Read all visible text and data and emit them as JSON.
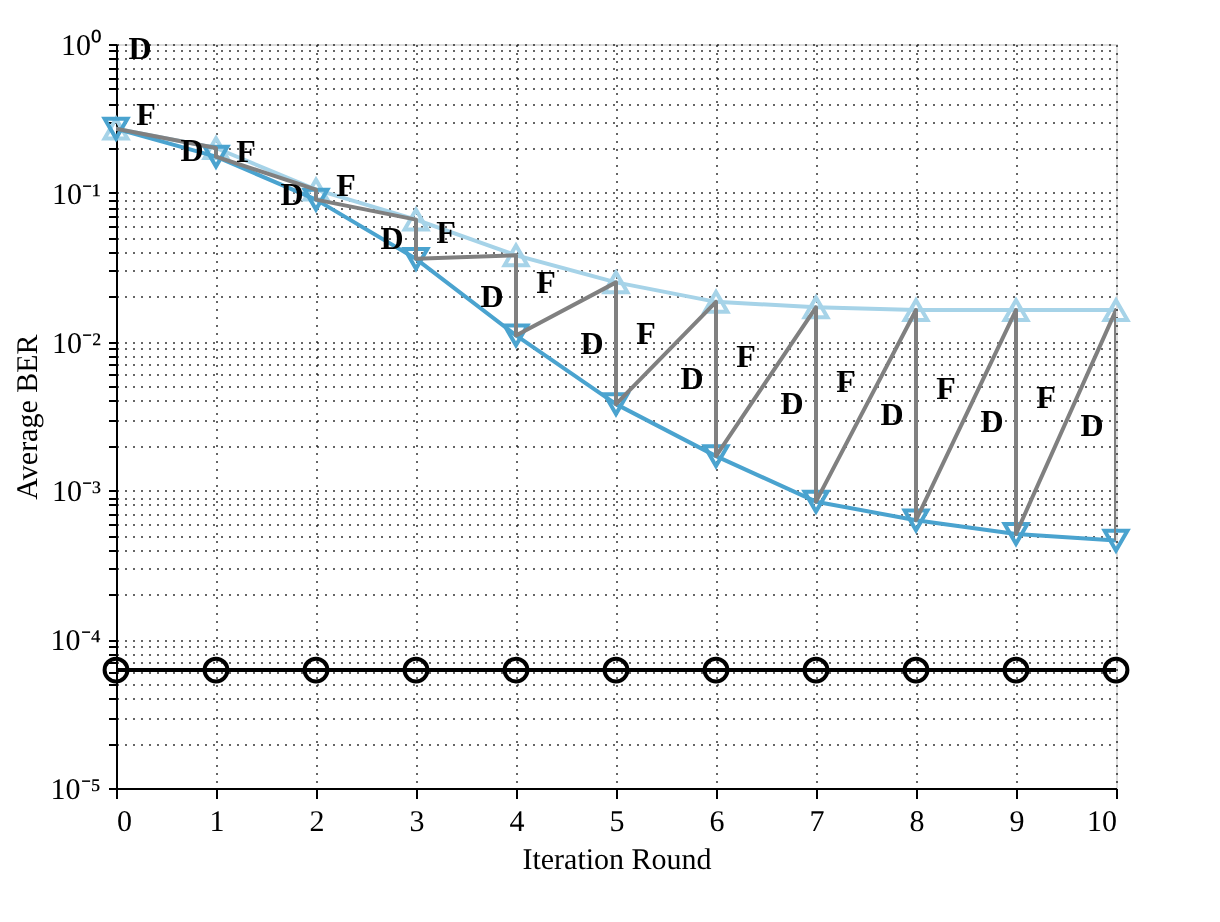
{
  "chart_data": {
    "type": "line",
    "xlabel": "Iteration Round",
    "ylabel": "Average BER",
    "log": "y",
    "grid": true,
    "line_style": "solid",
    "x": [
      0,
      1,
      2,
      3,
      4,
      5,
      6,
      7,
      8,
      9,
      10
    ],
    "xlim": [
      0,
      10
    ],
    "xticks": [
      0,
      1,
      2,
      3,
      4,
      5,
      6,
      7,
      8,
      9,
      10
    ],
    "ylim": [
      1e-05,
      1
    ],
    "yticks": [
      {
        "value": 1e-05,
        "label": "10⁻⁵"
      },
      {
        "value": 2e-05,
        "label": null
      },
      {
        "value": 3e-05,
        "label": null
      },
      {
        "value": 4e-05,
        "label": null
      },
      {
        "value": 5e-05,
        "label": null
      },
      {
        "value": 6e-05,
        "label": null
      },
      {
        "value": 7e-05,
        "label": null
      },
      {
        "value": 8e-05,
        "label": null
      },
      {
        "value": 9e-05,
        "label": null
      },
      {
        "value": 0.0001,
        "label": "10⁻⁴"
      },
      {
        "value": 0.0002,
        "label": null
      },
      {
        "value": 0.0003,
        "label": null
      },
      {
        "value": 0.0004,
        "label": null
      },
      {
        "value": 0.0005,
        "label": null
      },
      {
        "value": 0.0006,
        "label": null
      },
      {
        "value": 0.0007,
        "label": null
      },
      {
        "value": 0.0008,
        "label": null
      },
      {
        "value": 0.0009,
        "label": null
      },
      {
        "value": 0.001,
        "label": "10⁻³"
      },
      {
        "value": 0.002,
        "label": null
      },
      {
        "value": 0.003,
        "label": null
      },
      {
        "value": 0.004,
        "label": null
      },
      {
        "value": 0.005,
        "label": null
      },
      {
        "value": 0.006,
        "label": null
      },
      {
        "value": 0.007,
        "label": null
      },
      {
        "value": 0.008,
        "label": null
      },
      {
        "value": 0.009,
        "label": null
      },
      {
        "value": 0.01,
        "label": "10⁻²"
      },
      {
        "value": 0.02,
        "label": null
      },
      {
        "value": 0.03,
        "label": null
      },
      {
        "value": 0.04,
        "label": null
      },
      {
        "value": 0.05,
        "label": null
      },
      {
        "value": 0.06,
        "label": null
      },
      {
        "value": 0.07,
        "label": null
      },
      {
        "value": 0.08,
        "label": null
      },
      {
        "value": 0.09,
        "label": null
      },
      {
        "value": 0.1,
        "label": "10⁻¹"
      },
      {
        "value": 0.2,
        "label": null
      },
      {
        "value": 0.3,
        "label": null
      },
      {
        "value": 0.4,
        "label": null
      },
      {
        "value": 0.5,
        "label": null
      },
      {
        "value": 0.6,
        "label": null
      },
      {
        "value": 0.7,
        "label": null
      },
      {
        "value": 0.8,
        "label": null
      },
      {
        "value": 0.9,
        "label": null
      },
      {
        "value": 1,
        "label": "10⁰"
      }
    ],
    "series": [
      {
        "color": "#a6d3e8",
        "marker": "triangle",
        "values": [
          0.27,
          0.2,
          0.105,
          0.066,
          0.038,
          0.025,
          0.0185,
          0.017,
          0.0163,
          0.0163,
          0.0163
        ]
      },
      {
        "color": "#4aa3cf",
        "marker": "triangle-down",
        "values": [
          0.27,
          0.175,
          0.09,
          0.036,
          0.011,
          0.0038,
          0.0017,
          0.00084,
          0.00063,
          0.00051,
          0.00046
        ]
      },
      {
        "color": "#000000",
        "marker": "circle",
        "values": [
          6.2e-05,
          6.2e-05,
          6.2e-05,
          6.2e-05,
          6.2e-05,
          6.2e-05,
          6.2e-05,
          6.2e-05,
          6.2e-05,
          6.2e-05,
          6.2e-05
        ]
      },
      {
        "color": "#808080",
        "marker": "none",
        "x": [
          0,
          0,
          1,
          1,
          2,
          2,
          3,
          3,
          4,
          4,
          5,
          5,
          6,
          6,
          7,
          7,
          8,
          8,
          9,
          9,
          10,
          10
        ],
        "values": [
          0.27,
          0.27,
          0.2,
          0.175,
          0.105,
          0.09,
          0.066,
          0.036,
          0.038,
          0.011,
          0.025,
          0.0038,
          0.0185,
          0.0017,
          0.017,
          0.00084,
          0.0163,
          0.00063,
          0.0163,
          0.00051,
          0.0163,
          0.00046
        ]
      }
    ],
    "annotations": [
      {
        "text": "D",
        "x": 0,
        "y": 0.27
      },
      {
        "text": "F",
        "x": 0.5,
        "y": 0.23
      },
      {
        "text": "D",
        "x": 1,
        "y": 0.19
      },
      {
        "text": "F",
        "x": 1.5,
        "y": 0.13
      },
      {
        "text": "D",
        "x": 2,
        "y": 0.097
      },
      {
        "text": "F",
        "x": 2.5,
        "y": 0.077
      },
      {
        "text": "D",
        "x": 3,
        "y": 0.049
      },
      {
        "text": "F",
        "x": 3.5,
        "y": 0.037
      },
      {
        "text": "D",
        "x": 4,
        "y": 0.02
      },
      {
        "text": "F",
        "x": 4.5,
        "y": 0.017
      },
      {
        "text": "D",
        "x": 5,
        "y": 0.0097
      },
      {
        "text": "F",
        "x": 5.5,
        "y": 0.0078
      },
      {
        "text": "D",
        "x": 6,
        "y": 0.0056
      },
      {
        "text": "F",
        "x": 6.5,
        "y": 0.0054
      },
      {
        "text": "D",
        "x": 7,
        "y": 0.0038
      },
      {
        "text": "F",
        "x": 7.5,
        "y": 0.0037
      },
      {
        "text": "D",
        "x": 8,
        "y": 0.0032
      },
      {
        "text": "F",
        "x": 8.5,
        "y": 0.0033
      },
      {
        "text": "D",
        "x": 9,
        "y": 0.0029
      },
      {
        "text": "F",
        "x": 9.5,
        "y": 0.0029
      },
      {
        "text": "D",
        "x": 10,
        "y": 0.0027
      }
    ]
  }
}
